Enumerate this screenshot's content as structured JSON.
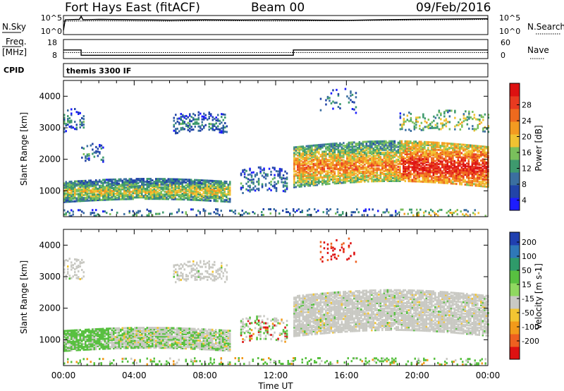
{
  "header": {
    "title": "Fort Hays East (fitACF)",
    "beam": "Beam 00",
    "date": "09/Feb/2016"
  },
  "chart_data": [
    {
      "type": "line",
      "title": "",
      "left_label": "N.Sky",
      "right_label": "N.Search",
      "left_ticks": [
        "10^5",
        "10^0"
      ],
      "right_ticks": [
        "10^5",
        "10^0"
      ],
      "series": [
        {
          "style": "solid",
          "x_hours": [
            0,
            0.1,
            0.9,
            1.0,
            1.1,
            2,
            4,
            6,
            8,
            10,
            12,
            14,
            16,
            18,
            20,
            22,
            24
          ],
          "level": [
            0.2,
            0.8,
            0.82,
            1.0,
            0.8,
            0.82,
            0.8,
            0.78,
            0.8,
            0.79,
            0.8,
            0.78,
            0.77,
            0.8,
            0.82,
            0.84,
            0.86
          ]
        },
        {
          "style": "dotted",
          "x_hours": [
            0,
            2,
            4,
            6,
            8,
            10,
            12,
            14,
            16,
            18,
            20,
            22,
            24
          ],
          "level": [
            0.72,
            0.74,
            0.73,
            0.72,
            0.75,
            0.74,
            0.73,
            0.74,
            0.75,
            0.77,
            0.79,
            0.8,
            0.82
          ]
        }
      ]
    },
    {
      "type": "line",
      "title": "",
      "left_label_1": "Freq.",
      "left_label_2": "[MHz]",
      "right_label": "Nave",
      "left_ticks": [
        "18",
        "8"
      ],
      "right_ticks": [
        "60",
        "0"
      ],
      "series": [
        {
          "name": "Freq.",
          "style": "solid",
          "x_hours": [
            0,
            1.0,
            1.0,
            13.0,
            13.0,
            24
          ],
          "freq_mhz": [
            12.5,
            12.5,
            9.5,
            9.5,
            12.5,
            12.5
          ]
        },
        {
          "name": "Nave",
          "style": "dotted",
          "x_hours": [
            0,
            24
          ],
          "nave": [
            18,
            18
          ]
        }
      ],
      "cpid_label": "CPID",
      "cpid_text": "themis 3300 IF"
    },
    {
      "type": "heatmap",
      "parameter": "Power",
      "xlabel": "",
      "ylabel": "Slant Range [km]",
      "ylim": [
        180,
        4500
      ],
      "yticks": [
        1000,
        2000,
        3000,
        4000
      ],
      "xlim_hours": [
        0,
        24
      ],
      "colorbar": {
        "label": "Power [dB]",
        "ticks": [
          "4",
          "8",
          "12",
          "16",
          "20",
          "24",
          "28"
        ],
        "colors": [
          "#1d1dff",
          "#2244a8",
          "#3b6fa0",
          "#3e9a6e",
          "#7abf5c",
          "#f0c232",
          "#f39b21",
          "#ee6a1e",
          "#e83a20",
          "#dd1111"
        ]
      },
      "regions": [
        {
          "t0": 0.0,
          "t1": 9.4,
          "r0": 680,
          "r1": 1350,
          "intensity": 0.55,
          "density": 0.85
        },
        {
          "t0": 13.0,
          "t1": 24.0,
          "r0": 1150,
          "r1": 2450,
          "intensity": 0.75,
          "density": 0.8
        },
        {
          "t0": 0.0,
          "t1": 1.1,
          "r0": 2900,
          "r1": 3550,
          "intensity": 0.3,
          "density": 0.25
        },
        {
          "t0": 6.2,
          "t1": 9.2,
          "r0": 2850,
          "r1": 3450,
          "intensity": 0.3,
          "density": 0.35
        },
        {
          "t0": 1.0,
          "t1": 2.2,
          "r0": 1950,
          "r1": 2450,
          "intensity": 0.3,
          "density": 0.25
        },
        {
          "t0": 10.0,
          "t1": 12.6,
          "r0": 950,
          "r1": 1700,
          "intensity": 0.3,
          "density": 0.3
        },
        {
          "t0": 0.0,
          "t1": 24.0,
          "r0": 190,
          "r1": 420,
          "intensity": 0.35,
          "density": 0.18
        },
        {
          "t0": 14.5,
          "t1": 16.5,
          "r0": 3500,
          "r1": 4200,
          "intensity": 0.3,
          "density": 0.12
        },
        {
          "t0": 19.0,
          "t1": 24.0,
          "r0": 2900,
          "r1": 3500,
          "intensity": 0.3,
          "density": 0.25
        }
      ]
    },
    {
      "type": "heatmap",
      "parameter": "Velocity",
      "xlabel": "Time UT",
      "ylabel": "Slant Range [km]",
      "ylim": [
        180,
        4500
      ],
      "yticks": [
        1000,
        2000,
        3000,
        4000
      ],
      "xlim_hours": [
        0,
        24
      ],
      "xticks": [
        "00:00",
        "04:00",
        "08:00",
        "12:00",
        "16:00",
        "20:00",
        "00:00"
      ],
      "colorbar": {
        "label": "Velocity [m s-1]",
        "ticks": [
          "200",
          "100",
          "50",
          "15",
          "-15",
          "-50",
          "-100",
          "-200"
        ],
        "colors": [
          "#2040b0",
          "#2f78b8",
          "#2f9a6a",
          "#58c040",
          "#90d860",
          "#c9c9c3",
          "#f2c532",
          "#f29a1a",
          "#ee6020",
          "#dd1111"
        ]
      },
      "regions": [
        {
          "t0": 0.0,
          "t1": 9.4,
          "r0": 680,
          "r1": 1350,
          "class": "mixed-green-grey",
          "density": 0.85
        },
        {
          "t0": 13.0,
          "t1": 24.0,
          "r0": 1150,
          "r1": 2450,
          "class": "grey",
          "density": 0.8
        },
        {
          "t0": 0.0,
          "t1": 1.1,
          "r0": 2900,
          "r1": 3550,
          "class": "grey",
          "density": 0.25
        },
        {
          "t0": 6.2,
          "t1": 9.2,
          "r0": 2850,
          "r1": 3450,
          "class": "grey",
          "density": 0.35
        },
        {
          "t0": 10.0,
          "t1": 12.6,
          "r0": 950,
          "r1": 1700,
          "class": "mixed",
          "density": 0.3
        },
        {
          "t0": 0.0,
          "t1": 24.0,
          "r0": 190,
          "r1": 420,
          "class": "green",
          "density": 0.18
        },
        {
          "t0": 14.5,
          "t1": 16.5,
          "r0": 3500,
          "r1": 4200,
          "class": "red",
          "density": 0.12
        }
      ]
    }
  ]
}
